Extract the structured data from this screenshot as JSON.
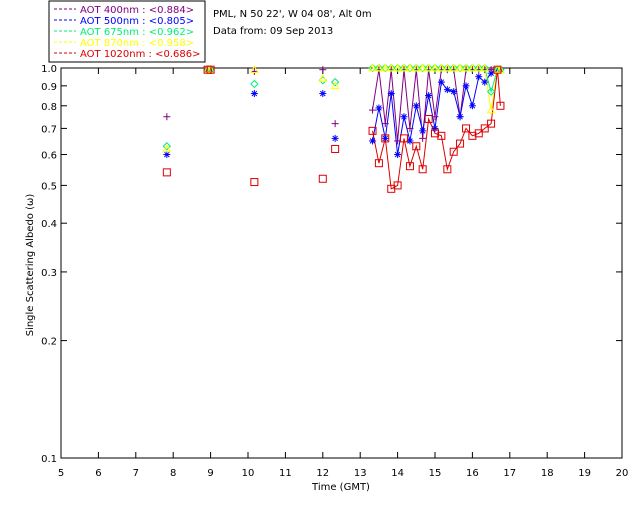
{
  "chart_data": {
    "type": "scatter",
    "title_lines": [
      "PML, N 50 22', W 04 08', Alt 0m",
      "Data from: 09 Sep 2013"
    ],
    "xlabel": "Time (GMT)",
    "ylabel": "Single Scattering Albedo (ω)",
    "xlim": [
      5,
      20
    ],
    "ylim": [
      0.1,
      1.0
    ],
    "yscale": "log",
    "xticks": [
      5,
      6,
      7,
      8,
      9,
      10,
      11,
      12,
      13,
      14,
      15,
      16,
      17,
      18,
      19,
      20
    ],
    "yticks": [
      0.1,
      0.2,
      0.3,
      0.4,
      0.5,
      0.6,
      0.7,
      0.8,
      0.9,
      1.0
    ],
    "ytick_labels": [
      "0.1",
      "0.2",
      "0.3",
      "0.4",
      "0.5",
      "0.6",
      "0.7",
      "0.8",
      "0.9",
      "1.0"
    ],
    "legend": [
      {
        "label": "AOT  400nm : <0.884>",
        "color": "#800080",
        "marker": "plus"
      },
      {
        "label": "AOT  500nm : <0.805>",
        "color": "#0000ff",
        "marker": "asterisk"
      },
      {
        "label": "AOT  675nm : <0.962>",
        "color": "#00ee77",
        "marker": "diamond"
      },
      {
        "label": "AOT  870nm : <0.958>",
        "color": "#ffff00",
        "marker": "triangle"
      },
      {
        "label": "AOT 1020nm : <0.686>",
        "color": "#dd0000",
        "marker": "square"
      }
    ],
    "series": [
      {
        "name": "400nm",
        "color": "#800080",
        "marker": "plus",
        "x": [
          7.83,
          8.92,
          9.0,
          10.17,
          12.0,
          12.33,
          13.33,
          13.5,
          13.67,
          13.83,
          14.0,
          14.17,
          14.33,
          14.5,
          14.67,
          14.83,
          15.0,
          15.17,
          15.33,
          15.5,
          15.67,
          15.83,
          16.0,
          16.17,
          16.33,
          16.5,
          16.67,
          16.75
        ],
        "y": [
          0.75,
          0.99,
          0.99,
          0.98,
          0.99,
          0.72,
          0.78,
          0.99,
          0.72,
          0.99,
          0.65,
          0.99,
          0.7,
          0.99,
          0.66,
          0.99,
          0.75,
          0.99,
          0.99,
          0.99,
          0.75,
          0.99,
          0.99,
          0.99,
          0.99,
          0.99,
          0.99,
          0.99
        ],
        "connect_from": 13.33
      },
      {
        "name": "500nm",
        "color": "#0000ff",
        "marker": "asterisk",
        "x": [
          7.83,
          8.92,
          9.0,
          10.17,
          12.0,
          12.33,
          13.33,
          13.5,
          13.67,
          13.83,
          14.0,
          14.17,
          14.33,
          14.5,
          14.67,
          14.83,
          15.0,
          15.17,
          15.33,
          15.5,
          15.67,
          15.83,
          16.0,
          16.17,
          16.33,
          16.5,
          16.67,
          16.75
        ],
        "y": [
          0.6,
          0.99,
          0.99,
          0.86,
          0.86,
          0.66,
          0.65,
          0.79,
          0.66,
          0.86,
          0.6,
          0.75,
          0.65,
          0.8,
          0.69,
          0.85,
          0.7,
          0.92,
          0.88,
          0.87,
          0.75,
          0.9,
          0.8,
          0.95,
          0.92,
          0.97,
          0.99,
          0.99
        ],
        "connect_from": 13.33
      },
      {
        "name": "675nm",
        "color": "#00ee77",
        "marker": "diamond",
        "x": [
          7.83,
          8.92,
          9.0,
          10.17,
          12.0,
          12.33,
          13.33,
          13.5,
          13.67,
          13.83,
          14.0,
          14.17,
          14.33,
          14.5,
          14.67,
          14.83,
          15.0,
          15.17,
          15.33,
          15.5,
          15.67,
          15.83,
          16.0,
          16.17,
          16.33,
          16.5,
          16.67,
          16.75
        ],
        "y": [
          0.63,
          0.99,
          0.99,
          0.91,
          0.93,
          0.92,
          1.0,
          1.0,
          1.0,
          1.0,
          1.0,
          1.0,
          1.0,
          1.0,
          1.0,
          1.0,
          1.0,
          1.0,
          1.0,
          1.0,
          1.0,
          1.0,
          1.0,
          1.0,
          1.0,
          0.87,
          0.99,
          0.99
        ],
        "connect_from": 13.33
      },
      {
        "name": "870nm",
        "color": "#ffff00",
        "marker": "triangle",
        "x": [
          7.83,
          8.92,
          9.0,
          10.17,
          12.0,
          12.33,
          13.33,
          13.5,
          13.67,
          13.83,
          14.0,
          14.17,
          14.33,
          14.5,
          14.67,
          14.83,
          15.0,
          15.17,
          15.33,
          15.5,
          15.67,
          15.83,
          16.0,
          16.17,
          16.33,
          16.5,
          16.67,
          16.75
        ],
        "y": [
          0.62,
          0.99,
          0.99,
          0.99,
          0.94,
          0.9,
          1.0,
          1.0,
          1.0,
          1.0,
          1.0,
          1.0,
          1.0,
          1.0,
          1.0,
          1.0,
          1.0,
          1.0,
          1.0,
          1.0,
          1.0,
          1.0,
          1.0,
          1.0,
          1.0,
          0.78,
          0.99,
          0.99
        ],
        "connect_from": 13.33
      },
      {
        "name": "1020nm",
        "color": "#dd0000",
        "marker": "square",
        "x": [
          7.83,
          8.92,
          9.0,
          10.17,
          12.0,
          12.33,
          13.33,
          13.5,
          13.67,
          13.83,
          14.0,
          14.17,
          14.33,
          14.5,
          14.67,
          14.83,
          15.0,
          15.17,
          15.33,
          15.5,
          15.67,
          15.83,
          16.0,
          16.17,
          16.33,
          16.5,
          16.67,
          16.75
        ],
        "y": [
          0.54,
          0.99,
          0.99,
          0.51,
          0.52,
          0.62,
          0.69,
          0.57,
          0.66,
          0.49,
          0.5,
          0.66,
          0.56,
          0.63,
          0.55,
          0.74,
          0.68,
          0.67,
          0.55,
          0.61,
          0.64,
          0.7,
          0.67,
          0.68,
          0.7,
          0.72,
          0.99,
          0.8
        ],
        "connect_from": 13.33
      }
    ]
  }
}
